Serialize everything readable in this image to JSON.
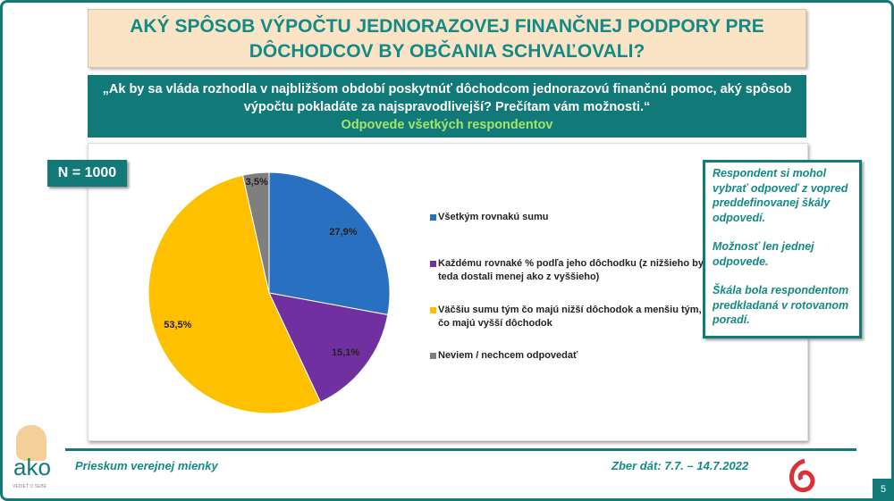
{
  "title": "AKÝ SPÔSOB VÝPOČTU JEDNORAZOVEJ FINANČNEJ PODPORY PRE DÔCHODCOV BY OBČANIA SCHVAĽOVALI?",
  "question": "„Ak by sa vláda rozhodla v najbližšom období poskytnúť dôchodcom jednorazovú finančnú pomoc, aký spôsob výpočtu pokladáte za najspravodlivejší? Prečítam vám možnosti.“",
  "question_sub": "Odpovede všetkých respondentov",
  "n_label": "N = 1000",
  "note": [
    "Respondent si mohol vybrať odpoveď z vopred preddefinovanej škály odpovedí.",
    "Možnosť len jednej odpovede.",
    "Škála bola respondentom predkladaná v rotovanom poradí."
  ],
  "footer": {
    "left": "Prieskum verejnej mienky",
    "right": "Zber dát: 7.7. – 14.7.2022",
    "page": "5",
    "logo_text": "ako",
    "logo_tagline": "VEDIEŤ O SEBE"
  },
  "chart_data": {
    "type": "pie",
    "categories": [
      "Všetkým rovnakú sumu",
      "Každému rovnaké % podľa jeho dôchodku (z nižšieho by teda dostali menej ako z vyššieho)",
      "Väčšiu sumu tým čo majú nižší dôchodok a menšiu tým, čo majú vyšší dôchodok",
      "Neviem / nechcem odpovedať"
    ],
    "values": [
      27.9,
      15.1,
      53.5,
      3.5
    ],
    "labels": [
      "27,9%",
      "15,1%",
      "53,5%",
      "3,5%"
    ],
    "colors": [
      "#2a70c0",
      "#7030a0",
      "#ffc000",
      "#7f7f7f"
    ],
    "legend_position": "right"
  }
}
